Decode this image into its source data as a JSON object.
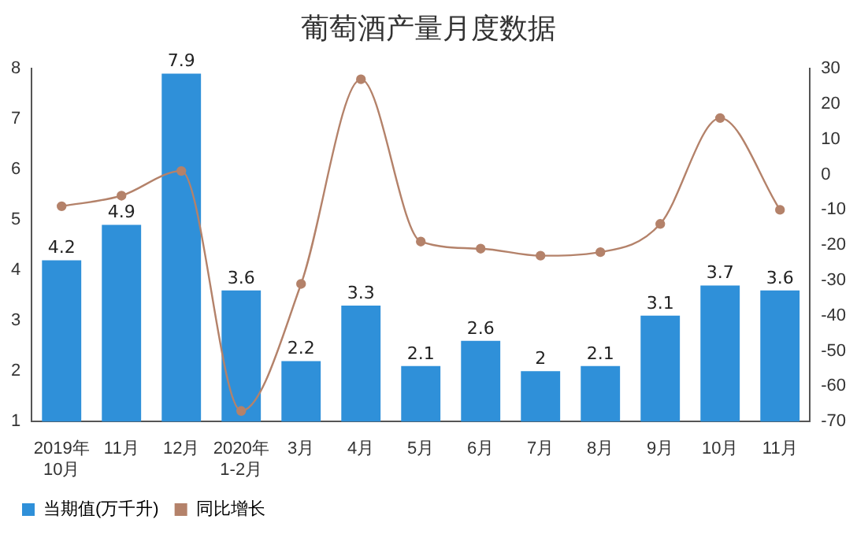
{
  "chart_data": {
    "type": "bar",
    "title": "葡萄酒产量月度数据",
    "categories": [
      "2019年\n10月",
      "11月",
      "12月",
      "2020年\n1-2月",
      "3月",
      "4月",
      "5月",
      "6月",
      "7月",
      "8月",
      "9月",
      "10月",
      "11月"
    ],
    "series": [
      {
        "name": "当期值(万千升)",
        "color": "#2f90d9",
        "values": [
          4.2,
          4.9,
          7.9,
          3.6,
          2.2,
          3.3,
          2.1,
          2.6,
          2,
          2.1,
          3.1,
          3.7,
          3.6
        ],
        "value_labels": [
          "4.2",
          "4.9",
          "7.9",
          "3.6",
          "2.2",
          "3.3",
          "2.1",
          "2.6",
          "2",
          "2.1",
          "3.1",
          "3.7",
          "3.6"
        ]
      },
      {
        "name": "同比增长",
        "type": "line",
        "axis": "y2",
        "color": "#b4826a",
        "values": [
          -9,
          -6,
          1,
          -67,
          -31,
          27,
          -19,
          -21,
          -23,
          -22,
          -14,
          16,
          -10
        ]
      }
    ],
    "ylim": [
      1,
      8
    ],
    "yticks": [
      1,
      2,
      3,
      4,
      5,
      6,
      7,
      8
    ],
    "y2lim": [
      -70,
      30
    ],
    "y2ticks": [
      -70,
      -60,
      -50,
      -40,
      -30,
      -20,
      -10,
      0,
      10,
      20,
      30
    ],
    "grid": false,
    "legend": "bottom left",
    "marker": "circle",
    "line_style": "solid"
  }
}
